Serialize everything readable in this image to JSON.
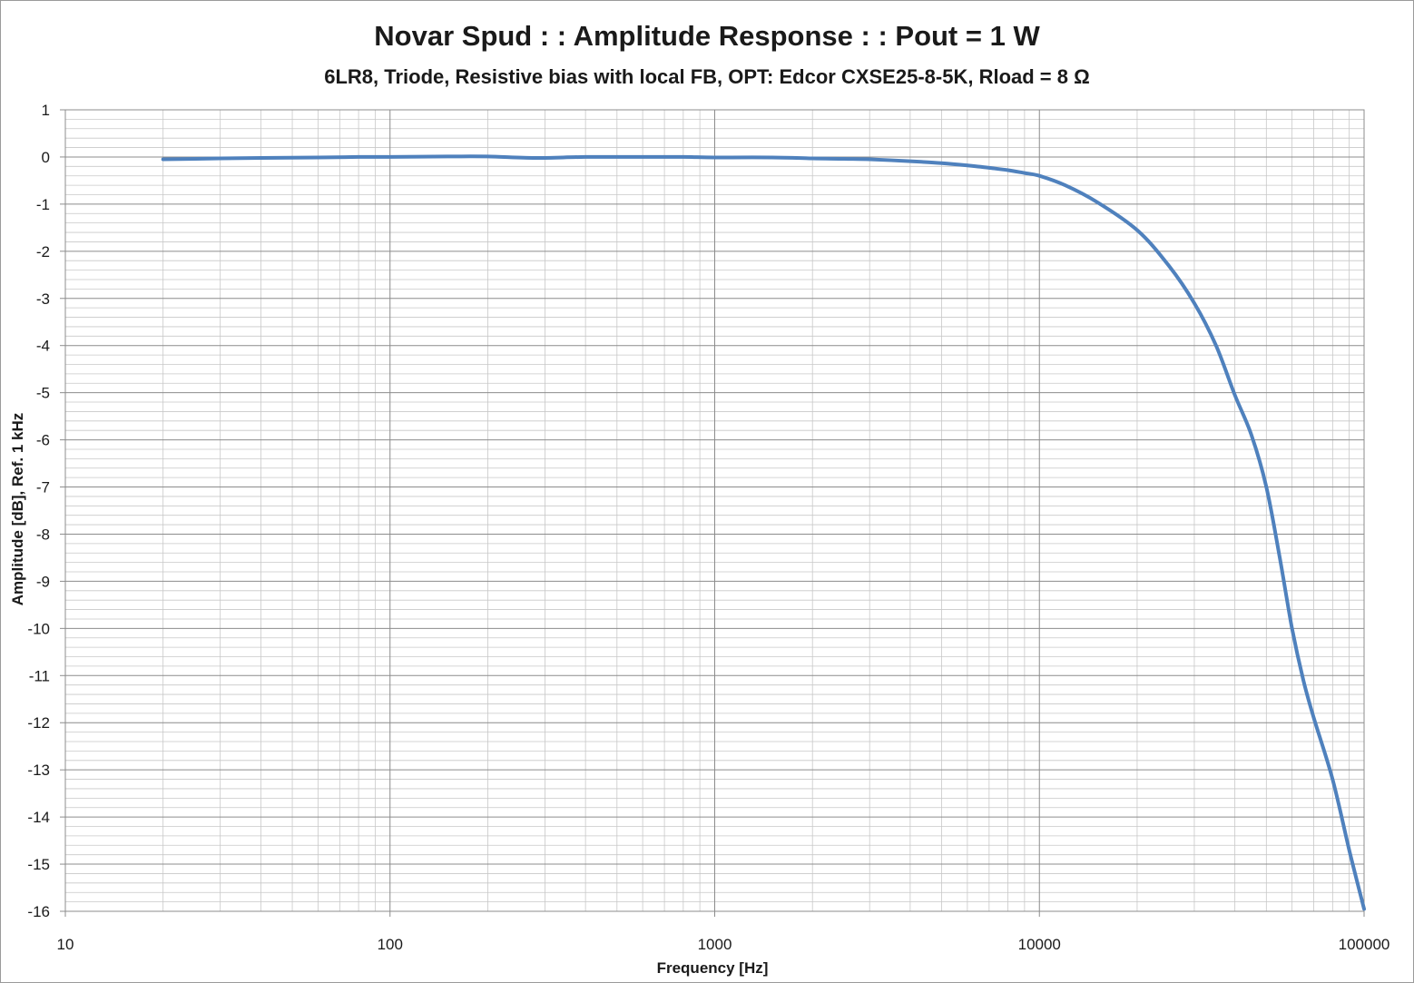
{
  "chart_data": {
    "type": "line",
    "title": "Novar Spud : : Amplitude Response : : Pout = 1 W",
    "subtitle": "6LR8, Triode, Resistive bias with local FB, OPT: Edcor CXSE25-8-5K, Rload = 8 Ω",
    "xlabel": "Frequency [Hz]",
    "ylabel": "Amplitude [dB], Ref. 1 kHz",
    "x_scale": "log",
    "xlim": [
      10,
      100000
    ],
    "ylim": [
      -16,
      1
    ],
    "x_ticks": [
      "10",
      "100",
      "1000",
      "10000",
      "100000"
    ],
    "y_ticks": [
      "1",
      "0",
      "-1",
      "-2",
      "-3",
      "-4",
      "-5",
      "-6",
      "-7",
      "-8",
      "-9",
      "-10",
      "-11",
      "-12",
      "-13",
      "-14",
      "-15",
      "-16"
    ],
    "grid": true,
    "legend": false,
    "series": [
      {
        "color": "#4f81bd",
        "x": [
          20,
          30,
          40,
          60,
          80,
          100,
          150,
          200,
          280,
          400,
          600,
          800,
          1000,
          1500,
          2000,
          2500,
          3000,
          4000,
          5000,
          6000,
          7000,
          8000,
          9000,
          10000,
          12000,
          15000,
          20000,
          25000,
          30000,
          35000,
          40000,
          45000,
          50000,
          55000,
          60000,
          65000,
          70000,
          80000,
          90000,
          100000
        ],
        "y": [
          -0.05,
          -0.03,
          -0.02,
          -0.01,
          0,
          0,
          0.01,
          0.01,
          -0.02,
          0,
          0,
          0,
          -0.01,
          -0.01,
          -0.03,
          -0.04,
          -0.05,
          -0.09,
          -0.13,
          -0.18,
          -0.23,
          -0.28,
          -0.34,
          -0.4,
          -0.6,
          -0.95,
          -1.55,
          -2.3,
          -3.1,
          -4.0,
          -5.05,
          -5.9,
          -7.0,
          -8.5,
          -10.0,
          -11.1,
          -11.9,
          -13.2,
          -14.7,
          -15.95
        ]
      }
    ]
  }
}
